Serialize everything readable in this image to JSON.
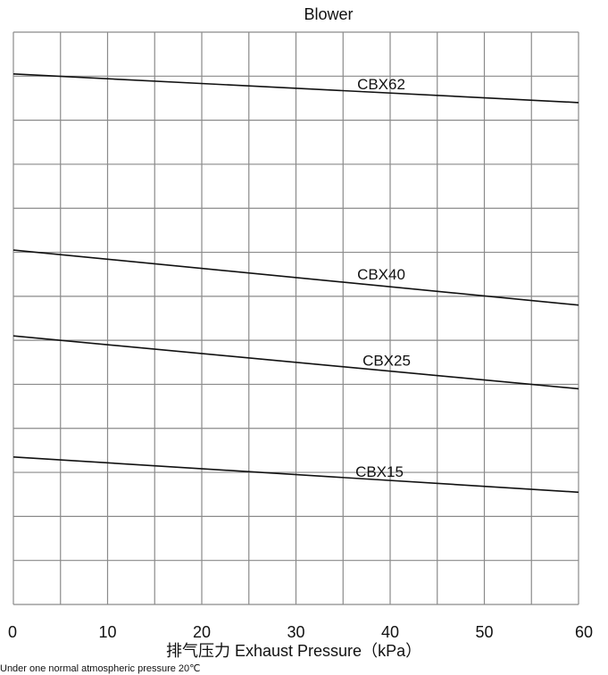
{
  "chart_data": {
    "type": "line",
    "title": "Blower",
    "xlabel": "排气压力  Exhaust Pressure（kPa）",
    "ylabel": "",
    "x_ticks": [
      0,
      10,
      20,
      30,
      40,
      50,
      60
    ],
    "xlim": [
      0,
      60
    ],
    "ylim": [
      0,
      13
    ],
    "y_tick_labels": [],
    "grid": true,
    "note": "Under one normal atmospheric pressure 20℃",
    "series": [
      {
        "name": "CBX62",
        "x": [
          0,
          60
        ],
        "y": [
          12.05,
          11.4
        ]
      },
      {
        "name": "CBX40",
        "x": [
          0,
          60
        ],
        "y": [
          8.05,
          6.8
        ]
      },
      {
        "name": "CBX25",
        "x": [
          0,
          60
        ],
        "y": [
          6.1,
          4.9
        ]
      },
      {
        "name": "CBX15",
        "x": [
          0,
          60
        ],
        "y": [
          3.35,
          2.55
        ]
      }
    ]
  }
}
